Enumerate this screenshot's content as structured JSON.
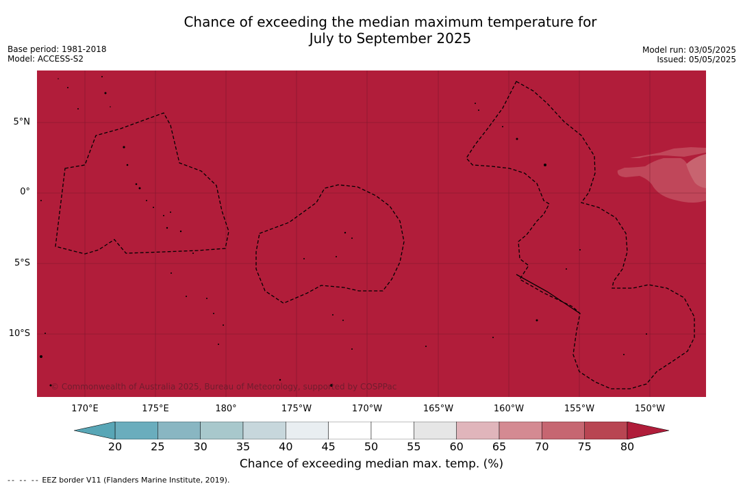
{
  "title_line1": "Chance of exceeding the median maximum temperature for",
  "title_line2": "July to September 2025",
  "meta_left": [
    "Base period: 1981-2018",
    "Model: ACCESS-S2"
  ],
  "meta_right": [
    "Model run: 03/05/2025",
    "Issued: 05/05/2025"
  ],
  "latitude_labels": [
    "5°N",
    "0°",
    "5°S",
    "10°S"
  ],
  "longitude_labels": [
    "170°E",
    "175°E",
    "180°",
    "175°W",
    "170°W",
    "165°W",
    "160°W",
    "155°W",
    "150°W"
  ],
  "copyright": "© Commonwealth of Australia 2025, Bureau of Meteorology, supported by COSPPac",
  "colorbar": {
    "ticks": [
      "20",
      "25",
      "30",
      "35",
      "40",
      "45",
      "50",
      "55",
      "60",
      "65",
      "70",
      "75",
      "80"
    ],
    "colors": [
      "#6aadbd",
      "#89b6c2",
      "#a8c8cc",
      "#c7d7dc",
      "#e9eef1",
      "#ffffff",
      "#ffffff",
      "#e6e6e6",
      "#e0b5bb",
      "#d48a92",
      "#c66671",
      "#b84552"
    ],
    "under_color": "#58a6b6",
    "over_color": "#b01d3a",
    "label": "Chance of exceeding median max. temp. (%)"
  },
  "map_colors": {
    "dominant": "#b11d3a",
    "lighter_patch": "#c0475a",
    "lightest_patch": "#c86470"
  },
  "footnote_dashes": "--  --  --",
  "footnote": "EEZ border V11 (Flanders Marine Institute, 2019)."
}
